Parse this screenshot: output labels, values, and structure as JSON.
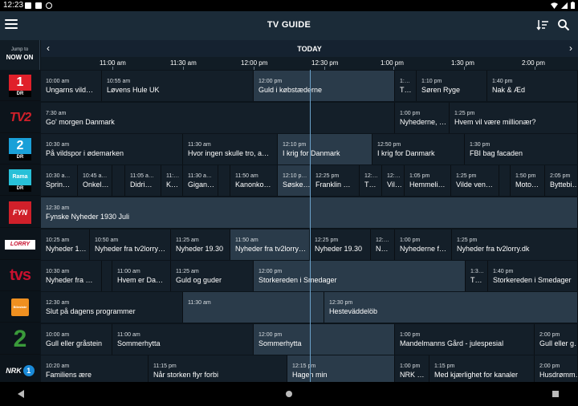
{
  "status_bar": {
    "time": "12:23"
  },
  "app_bar": {
    "title": "TV GUIDE"
  },
  "jump": {
    "line1": "Jump to",
    "line2": "NOW ON"
  },
  "day": {
    "label": "TODAY"
  },
  "times": [
    "11:00 am",
    "11:30 am",
    "12:00 pm",
    "12:30 pm",
    "1:00 pm",
    "1:30 pm",
    "2:00 pm"
  ],
  "channels": [
    {
      "name": "DR1",
      "logo_text": "1",
      "sub": "DR",
      "color": "#e0202a",
      "programs": [
        {
          "time": "10:00 am",
          "name": "Ungarns vild…"
        },
        {
          "time": "10:55 am",
          "name": "Løvens Hule UK"
        },
        {
          "time": "12:00 pm",
          "name": "Guld i købstæderne"
        },
        {
          "time": "1:…",
          "name": "T…"
        },
        {
          "time": "1:10 pm",
          "name": "Søren Ryge"
        },
        {
          "time": "1:40 pm",
          "name": "Nak & Æd"
        }
      ]
    },
    {
      "name": "TV2",
      "logo_text": "TV2",
      "color": "#d0202a",
      "programs": [
        {
          "time": "7:30 am",
          "name": "Go' morgen Danmark"
        },
        {
          "time": "1:00 pm",
          "name": "Nyhederne, …"
        },
        {
          "time": "1:25 pm",
          "name": "Hvem vil være millionær?"
        }
      ]
    },
    {
      "name": "DR2",
      "logo_text": "2",
      "sub": "DR",
      "color": "#1aa0d8",
      "programs": [
        {
          "time": "10:30 am",
          "name": "På vildspor i ødemarken"
        },
        {
          "time": "11:30 am",
          "name": "Hvor ingen skulle tro, a…"
        },
        {
          "time": "12:10 pm",
          "name": "I krig for Danmark"
        },
        {
          "time": "12:50 pm",
          "name": "I krig for Danmark"
        },
        {
          "time": "1:30 pm",
          "name": "FBI bag facaden"
        }
      ]
    },
    {
      "name": "DR Ramasjang",
      "logo_text": "Rama",
      "sub": "DR",
      "color": "#28c0d8",
      "programs": [
        {
          "time": "10:30 a…",
          "name": "Sprin…"
        },
        {
          "time": "10:45 a…",
          "name": "Onkel…"
        },
        {
          "time": "",
          "name": ""
        },
        {
          "time": "11:05 a…",
          "name": "Didri…"
        },
        {
          "time": "11:…",
          "name": "K…"
        },
        {
          "time": "11:30 a…",
          "name": "Gigan…"
        },
        {
          "time": "",
          "name": ""
        },
        {
          "time": "11:50 am",
          "name": "Kanonko…"
        },
        {
          "time": "12:10 p…",
          "name": "Søske…"
        },
        {
          "time": "12:25 pm",
          "name": "Franklin …"
        },
        {
          "time": "12:…",
          "name": "T…"
        },
        {
          "time": "12:…",
          "name": "Vil…"
        },
        {
          "time": "1:05 pm",
          "name": "Hemmeli…"
        },
        {
          "time": "1:25 pm",
          "name": "Vilde ven…"
        },
        {
          "time": "",
          "name": ""
        },
        {
          "time": "1:50 pm",
          "name": "Moto…"
        },
        {
          "time": "2:05 pm",
          "name": "Byttebi…"
        }
      ]
    },
    {
      "name": "TV2 Fyn",
      "logo_text": "FYN",
      "color": "#d0202a",
      "programs": [
        {
          "time": "12:30 am",
          "name": "Fynske Nyheder 1930 Juli"
        }
      ]
    },
    {
      "name": "TV2 Lorry",
      "logo_text": "LORRY",
      "color": "#ffffff",
      "programs": [
        {
          "time": "10:25 am",
          "name": "Nyheder 1…"
        },
        {
          "time": "10:50 am",
          "name": "Nyheder fra tv2lorry…"
        },
        {
          "time": "11:25 am",
          "name": "Nyheder 19.30"
        },
        {
          "time": "11:50 am",
          "name": "Nyheder fra tv2lorry…"
        },
        {
          "time": "12:25 pm",
          "name": "Nyheder 19.30"
        },
        {
          "time": "12:…",
          "name": "N…"
        },
        {
          "time": "1:00 pm",
          "name": "Nyhederne f…"
        },
        {
          "time": "1:25 pm",
          "name": "Nyheder fra tv2lorry.dk"
        }
      ]
    },
    {
      "name": "TVS",
      "logo_text": "tvs",
      "color": "#c8102e",
      "programs": [
        {
          "time": "10:30 am",
          "name": "Nyheder fra …"
        },
        {
          "time": "",
          "name": ""
        },
        {
          "time": "11:00 am",
          "name": "Hvem er Da…"
        },
        {
          "time": "11:25 am",
          "name": "Guld og guder"
        },
        {
          "time": "12:00 pm",
          "name": "Storkereden i Smedager"
        },
        {
          "time": "1:3…",
          "name": "T…"
        },
        {
          "time": "1:40 pm",
          "name": "Storkereden i Smedager"
        }
      ]
    },
    {
      "name": "Bilestate",
      "logo_text": "Bilestate",
      "color": "#f09020",
      "programs": [
        {
          "time": "12:30 am",
          "name": "Slut på dagens programmer"
        },
        {
          "time": "11:30 am",
          "name": ""
        },
        {
          "time": "12:30 pm",
          "name": "Hesteväddelöb"
        }
      ]
    },
    {
      "name": "TV2 Norge",
      "logo_text": "2",
      "color": "#3a9a3a",
      "programs": [
        {
          "time": "10:00 am",
          "name": "Gull eller gråstein"
        },
        {
          "time": "11:00 am",
          "name": "Sommerhytta"
        },
        {
          "time": "12:00 pm",
          "name": "Sommerhytta"
        },
        {
          "time": "1:00 pm",
          "name": "Mandelmanns Gård - julespesial"
        },
        {
          "time": "2:00 pm",
          "name": "Gull eller g…"
        }
      ]
    },
    {
      "name": "NRK1",
      "logo_text": "NRK",
      "color": "#1a8ad8",
      "programs": [
        {
          "time": "10:20 am",
          "name": "Familiens ære"
        },
        {
          "time": "11:15 pm",
          "name": "Når storken flyr forbi"
        },
        {
          "time": "12:15 pm",
          "name": "Hagen min"
        },
        {
          "time": "1:00 pm",
          "name": "NRK …"
        },
        {
          "time": "1:15 pm",
          "name": "Med kjærlighet for kanaler"
        },
        {
          "time": "2:00 pm",
          "name": "Husdrømm…"
        }
      ]
    }
  ]
}
